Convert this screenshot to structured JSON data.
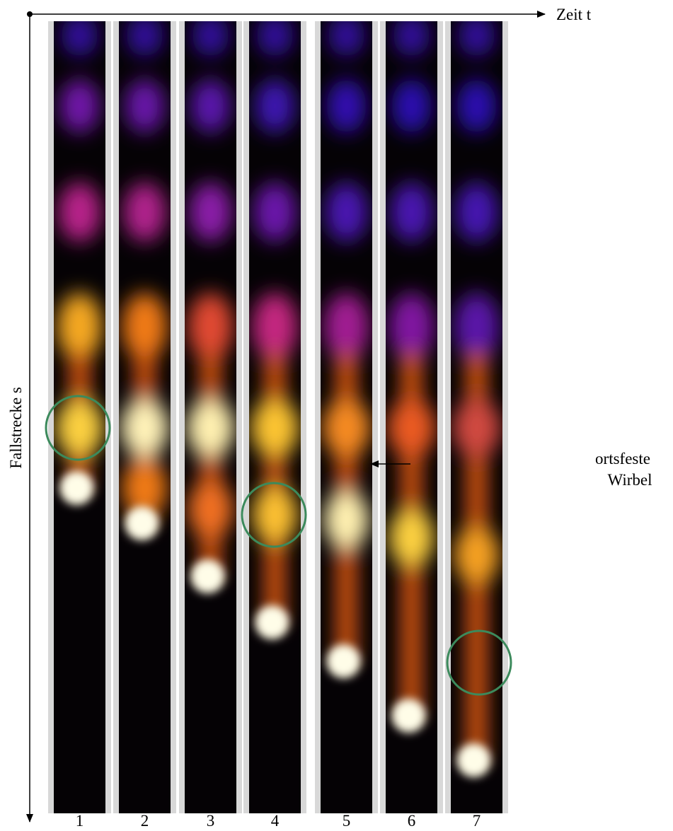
{
  "axes": {
    "x_label": "Zeit t",
    "y_label": "Fallstrecke s"
  },
  "annotation": {
    "lines": [
      "ortsfeste",
      "Wirbel"
    ]
  },
  "frames": {
    "labels": [
      "1",
      "2",
      "3",
      "4",
      "5",
      "6",
      "7"
    ]
  }
}
